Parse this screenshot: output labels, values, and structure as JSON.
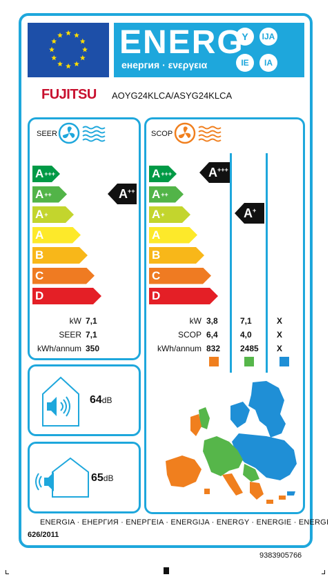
{
  "header": {
    "energy_word": "ENERG",
    "energy_sub": "енергия · ενεργεια",
    "suffixes": [
      "Y",
      "IJA",
      "IE",
      "IA"
    ]
  },
  "brand": "FUJITSU",
  "model": "AOYG24KLCA/ASYG24KLCA",
  "seer": {
    "title": "SEER",
    "scale": [
      "A+++",
      "A++",
      "A+",
      "A",
      "B",
      "C",
      "D"
    ],
    "rating": "A++",
    "rows": [
      {
        "label": "kW",
        "value": "7,1"
      },
      {
        "label": "SEER",
        "value": "7,1"
      },
      {
        "label": "kWh/annum",
        "value": "350"
      }
    ]
  },
  "scop": {
    "title": "SCOP",
    "scale": [
      "A+++",
      "A++",
      "A+",
      "A",
      "B",
      "C",
      "D"
    ],
    "ratings": [
      "A+++",
      "A+"
    ],
    "rows": [
      {
        "label": "kW",
        "values": [
          "3,8",
          "7,1",
          "X"
        ]
      },
      {
        "label": "SCOP",
        "values": [
          "6,4",
          "4,0",
          "X"
        ]
      },
      {
        "label": "kWh/annum",
        "values": [
          "832",
          "2485",
          "X"
        ]
      }
    ],
    "zone_colors": [
      "#f07f1e",
      "#56b64a",
      "#1f8fd6"
    ]
  },
  "noise": {
    "indoor_db": "64",
    "outdoor_db": "65",
    "unit": "dB"
  },
  "scale_colors": [
    "#009a46",
    "#52b448",
    "#c3d52d",
    "#fde92a",
    "#f8b719",
    "#ef7b22",
    "#e41f26"
  ],
  "footer": {
    "languages": "ENERGIA · ЕНЕРГИЯ · ΕΝΕΡΓΕΙΑ · ENERGIJA · ENERGY · ENERGIE · ENERGI",
    "regulation": "626/2011",
    "code": "9383905766"
  }
}
